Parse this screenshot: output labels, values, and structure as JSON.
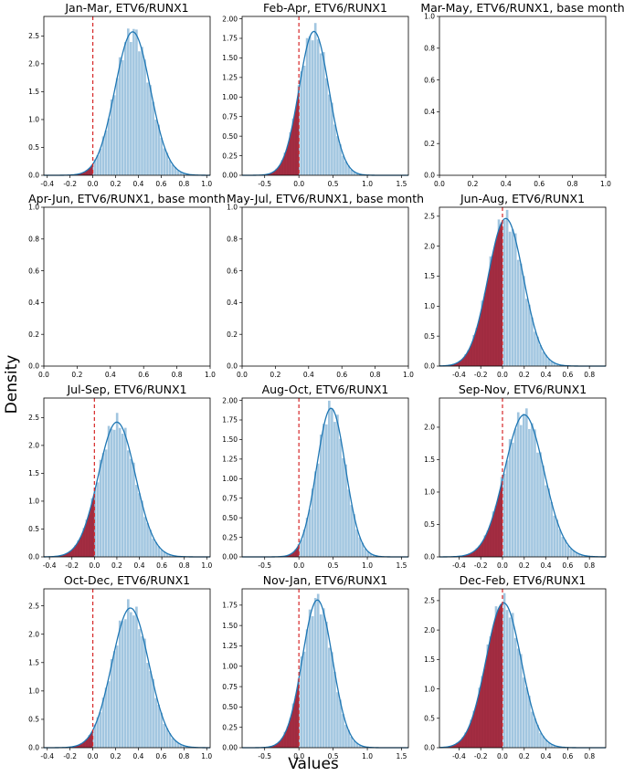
{
  "figure": {
    "xlabel": "Values",
    "ylabel": "Density"
  },
  "colors": {
    "hist": "#9dc3de",
    "kde": "#1f77b4",
    "tail": "#a0192f",
    "zero_line": "#d62728"
  },
  "chart_data": [
    {
      "title": "Jan-Mar, ETV6/RUNX1",
      "type": "area",
      "mean": 0.35,
      "sd": 0.155,
      "xlim": [
        -0.43,
        1.03
      ],
      "ylim": [
        0,
        2.85
      ],
      "xticks": [
        -0.4,
        -0.2,
        0.0,
        0.2,
        0.4,
        0.6,
        0.8,
        1.0
      ],
      "xtick_labels": [
        "-0.4",
        "-0.2",
        "0.0",
        "0.2",
        "0.4",
        "0.6",
        "0.8",
        "1.0"
      ],
      "yticks": [
        0,
        0.5,
        1.0,
        1.5,
        2.0,
        2.5
      ],
      "ytick_labels": [
        "0.0",
        "0.5",
        "1.0",
        "1.5",
        "2.0",
        "2.5"
      ],
      "zero_line": true
    },
    {
      "title": "Feb-Apr, ETV6/RUNX1",
      "type": "area",
      "mean": 0.22,
      "sd": 0.217,
      "xlim": [
        -0.83,
        1.6
      ],
      "ylim": [
        0,
        2.03
      ],
      "xticks": [
        -0.5,
        0.0,
        0.5,
        1.0,
        1.5
      ],
      "xtick_labels": [
        "-0.5",
        "0.0",
        "0.5",
        "1.0",
        "1.5"
      ],
      "yticks": [
        0,
        0.25,
        0.5,
        0.75,
        1.0,
        1.25,
        1.5,
        1.75,
        2.0
      ],
      "ytick_labels": [
        "0.00",
        "0.25",
        "0.50",
        "0.75",
        "1.00",
        "1.25",
        "1.50",
        "1.75",
        "2.00"
      ],
      "zero_line": true
    },
    {
      "title": "Mar-May, ETV6/RUNX1, base month",
      "type": "empty",
      "xlim": [
        0,
        1
      ],
      "ylim": [
        0,
        1
      ],
      "xticks": [
        0,
        0.2,
        0.4,
        0.6,
        0.8,
        1.0
      ],
      "xtick_labels": [
        "0.0",
        "0.2",
        "0.4",
        "0.6",
        "0.8",
        "1.0"
      ],
      "yticks": [
        0,
        0.2,
        0.4,
        0.6,
        0.8,
        1.0
      ],
      "ytick_labels": [
        "0.0",
        "0.2",
        "0.4",
        "0.6",
        "0.8",
        "1.0"
      ],
      "zero_line": false
    },
    {
      "title": "Apr-Jun, ETV6/RUNX1, base month",
      "type": "empty",
      "xlim": [
        0,
        1
      ],
      "ylim": [
        0,
        1
      ],
      "xticks": [
        0,
        0.2,
        0.4,
        0.6,
        0.8,
        1.0
      ],
      "xtick_labels": [
        "0.0",
        "0.2",
        "0.4",
        "0.6",
        "0.8",
        "1.0"
      ],
      "yticks": [
        0,
        0.2,
        0.4,
        0.6,
        0.8,
        1.0
      ],
      "ytick_labels": [
        "0.0",
        "0.2",
        "0.4",
        "0.6",
        "0.8",
        "1.0"
      ],
      "zero_line": false
    },
    {
      "title": "May-Jul, ETV6/RUNX1, base month",
      "type": "empty",
      "xlim": [
        0,
        1
      ],
      "ylim": [
        0,
        1
      ],
      "xticks": [
        0,
        0.2,
        0.4,
        0.6,
        0.8,
        1.0
      ],
      "xtick_labels": [
        "0.0",
        "0.2",
        "0.4",
        "0.6",
        "0.8",
        "1.0"
      ],
      "yticks": [
        0,
        0.2,
        0.4,
        0.6,
        0.8,
        1.0
      ],
      "ytick_labels": [
        "0.0",
        "0.2",
        "0.4",
        "0.6",
        "0.8",
        "1.0"
      ],
      "zero_line": false
    },
    {
      "title": "Jun-Aug, ETV6/RUNX1",
      "type": "area",
      "mean": 0.03,
      "sd": 0.162,
      "xlim": [
        -0.58,
        0.95
      ],
      "ylim": [
        0,
        2.65
      ],
      "xticks": [
        -0.4,
        -0.2,
        0.0,
        0.2,
        0.4,
        0.6,
        0.8
      ],
      "xtick_labels": [
        "-0.4",
        "-0.2",
        "0.0",
        "0.2",
        "0.4",
        "0.6",
        "0.8"
      ],
      "yticks": [
        0,
        0.5,
        1.0,
        1.5,
        2.0,
        2.5
      ],
      "ytick_labels": [
        "0.0",
        "0.5",
        "1.0",
        "1.5",
        "2.0",
        "2.5"
      ],
      "zero_line": true
    },
    {
      "title": "Jul-Sep, ETV6/RUNX1",
      "type": "area",
      "mean": 0.2,
      "sd": 0.165,
      "xlim": [
        -0.45,
        1.03
      ],
      "ylim": [
        0,
        2.85
      ],
      "xticks": [
        -0.4,
        -0.2,
        0.0,
        0.2,
        0.4,
        0.6,
        0.8,
        1.0
      ],
      "xtick_labels": [
        "-0.4",
        "-0.2",
        "0.0",
        "0.2",
        "0.4",
        "0.6",
        "0.8",
        "1.0"
      ],
      "yticks": [
        0,
        0.5,
        1.0,
        1.5,
        2.0,
        2.5
      ],
      "ytick_labels": [
        "0.0",
        "0.5",
        "1.0",
        "1.5",
        "2.0",
        "2.5"
      ],
      "zero_line": true
    },
    {
      "title": "Aug-Oct, ETV6/RUNX1",
      "type": "area",
      "mean": 0.47,
      "sd": 0.21,
      "xlim": [
        -0.83,
        1.6
      ],
      "ylim": [
        0,
        2.03
      ],
      "xticks": [
        -0.5,
        0.0,
        0.5,
        1.0,
        1.5
      ],
      "xtick_labels": [
        "-0.5",
        "0.0",
        "0.5",
        "1.0",
        "1.5"
      ],
      "yticks": [
        0,
        0.25,
        0.5,
        0.75,
        1.0,
        1.25,
        1.5,
        1.75,
        2.0
      ],
      "ytick_labels": [
        "0.00",
        "0.25",
        "0.50",
        "0.75",
        "1.00",
        "1.25",
        "1.50",
        "1.75",
        "2.00"
      ],
      "zero_line": true
    },
    {
      "title": "Sep-Nov, ETV6/RUNX1",
      "type": "area",
      "mean": 0.2,
      "sd": 0.182,
      "xlim": [
        -0.58,
        0.95
      ],
      "ylim": [
        0,
        2.45
      ],
      "xticks": [
        -0.4,
        -0.2,
        0.0,
        0.2,
        0.4,
        0.6,
        0.8
      ],
      "xtick_labels": [
        "-0.4",
        "-0.2",
        "0.0",
        "0.2",
        "0.4",
        "0.6",
        "0.8"
      ],
      "yticks": [
        0,
        0.5,
        1.0,
        1.5,
        2.0
      ],
      "ytick_labels": [
        "0.0",
        "0.5",
        "1.0",
        "1.5",
        "2.0"
      ],
      "zero_line": true
    },
    {
      "title": "Oct-Dec, ETV6/RUNX1",
      "type": "area",
      "mean": 0.33,
      "sd": 0.162,
      "xlim": [
        -0.43,
        1.03
      ],
      "ylim": [
        0,
        2.8
      ],
      "xticks": [
        -0.4,
        -0.2,
        0.0,
        0.2,
        0.4,
        0.6,
        0.8,
        1.0
      ],
      "xtick_labels": [
        "-0.4",
        "-0.2",
        "0.0",
        "0.2",
        "0.4",
        "0.6",
        "0.8",
        "1.0"
      ],
      "yticks": [
        0,
        0.5,
        1.0,
        1.5,
        2.0,
        2.5
      ],
      "ytick_labels": [
        "0.0",
        "0.5",
        "1.0",
        "1.5",
        "2.0",
        "2.5"
      ],
      "zero_line": true
    },
    {
      "title": "Nov-Jan, ETV6/RUNX1",
      "type": "area",
      "mean": 0.27,
      "sd": 0.22,
      "xlim": [
        -0.83,
        1.6
      ],
      "ylim": [
        0,
        1.95
      ],
      "xticks": [
        -0.5,
        0.0,
        0.5,
        1.0,
        1.5
      ],
      "xtick_labels": [
        "-0.5",
        "0.0",
        "0.5",
        "1.0",
        "1.5"
      ],
      "yticks": [
        0,
        0.25,
        0.5,
        0.75,
        1.0,
        1.25,
        1.5,
        1.75
      ],
      "ytick_labels": [
        "0.00",
        "0.25",
        "0.50",
        "0.75",
        "1.00",
        "1.25",
        "1.50",
        "1.75"
      ],
      "zero_line": true
    },
    {
      "title": "Dec-Feb, ETV6/RUNX1",
      "type": "area",
      "mean": 0.01,
      "sd": 0.162,
      "xlim": [
        -0.58,
        0.95
      ],
      "ylim": [
        0,
        2.7
      ],
      "xticks": [
        -0.4,
        -0.2,
        0.0,
        0.2,
        0.4,
        0.6,
        0.8
      ],
      "xtick_labels": [
        "-0.4",
        "-0.2",
        "0.0",
        "0.2",
        "0.4",
        "0.6",
        "0.8"
      ],
      "yticks": [
        0,
        0.5,
        1.0,
        1.5,
        2.0,
        2.5
      ],
      "ytick_labels": [
        "0.0",
        "0.5",
        "1.0",
        "1.5",
        "2.0",
        "2.5"
      ],
      "zero_line": true
    }
  ]
}
